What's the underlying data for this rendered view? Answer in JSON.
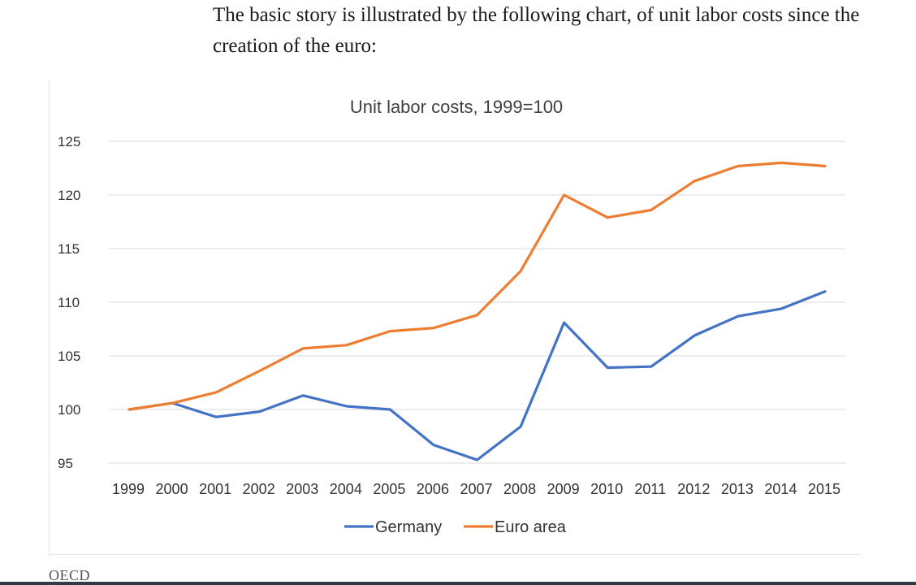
{
  "article": {
    "intro_text": "The basic story is illustrated by the following chart, of unit labor costs since the creation of the euro:",
    "source_label": "OECD"
  },
  "colors": {
    "germany": "#4472c4",
    "euro_area": "#ed7d31",
    "grid": "#e0e0e0",
    "text": "#333333"
  },
  "chart_data": {
    "type": "line",
    "title": "Unit labor costs, 1999=100",
    "xlabel": "",
    "ylabel": "",
    "categories": [
      "1999",
      "2000",
      "2001",
      "2002",
      "2003",
      "2004",
      "2005",
      "2006",
      "2007",
      "2008",
      "2009",
      "2010",
      "2011",
      "2012",
      "2013",
      "2014",
      "2015"
    ],
    "yticks": [
      95,
      100,
      105,
      110,
      115,
      120,
      125
    ],
    "ylim": [
      95,
      125
    ],
    "grid": true,
    "legend_position": "bottom-center",
    "series": [
      {
        "name": "Germany",
        "color": "#4472c4",
        "values": [
          100.0,
          100.6,
          99.3,
          99.8,
          101.3,
          100.3,
          100.0,
          96.7,
          95.3,
          98.4,
          108.1,
          103.9,
          104.0,
          106.9,
          108.7,
          109.4,
          111.0
        ]
      },
      {
        "name": "Euro area",
        "color": "#ed7d31",
        "values": [
          100.0,
          100.6,
          101.6,
          103.6,
          105.7,
          106.0,
          107.3,
          107.6,
          108.8,
          112.9,
          120.0,
          117.9,
          118.6,
          121.3,
          122.7,
          123.0,
          122.7
        ]
      }
    ]
  }
}
